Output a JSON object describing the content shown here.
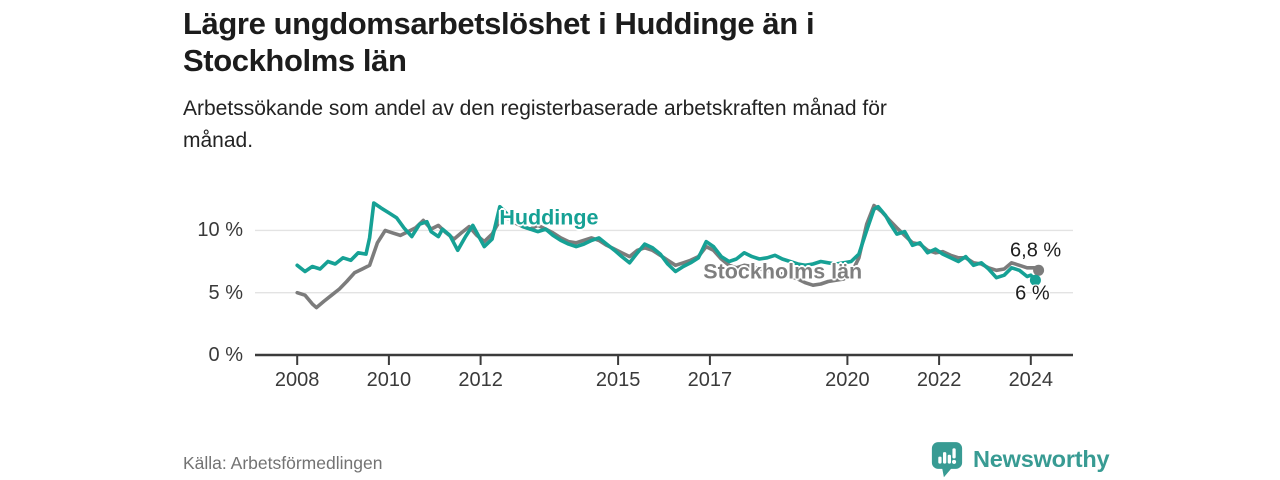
{
  "branding": {
    "logo_text": "Newsworthy"
  },
  "chart_data": {
    "type": "line",
    "title": "Lägre ungdomsarbetslöshet i Huddinge än i Stockholms län",
    "title_lines": [
      "Lägre ungdomsarbetslöshet i Huddinge än i",
      "Stockholms län"
    ],
    "subtitle": "Arbetssökande som andel av den registerbaserade arbetskraften månad för månad.",
    "subtitle_lines": [
      "Arbetssökande som andel av den registerbaserade arbetskraften månad för",
      "månad."
    ],
    "source": "Källa: Arbetsförmedlingen",
    "unit": "%",
    "xlabel": "",
    "ylabel": "",
    "grid": "horizontal",
    "legend_position": "inline-labels",
    "xlim": [
      2007.08,
      2024.92
    ],
    "ylim": [
      0,
      13
    ],
    "colors": {
      "grid": "#E3E3E3",
      "axis": "#3B3B3B"
    },
    "y_ticks": [
      {
        "v": 10,
        "label": "10 %"
      },
      {
        "v": 5,
        "label": "5 %"
      },
      {
        "v": 0,
        "label": "0 %"
      }
    ],
    "x_ticks": [
      {
        "v": 2008,
        "label": "2008"
      },
      {
        "v": 2010,
        "label": "2010"
      },
      {
        "v": 2012,
        "label": "2012"
      },
      {
        "v": 2015,
        "label": "2015"
      },
      {
        "v": 2017,
        "label": "2017"
      },
      {
        "v": 2020,
        "label": "2020"
      },
      {
        "v": 2022,
        "label": "2022"
      },
      {
        "v": 2024,
        "label": "2024"
      }
    ],
    "series": [
      {
        "id": "stockholms-lan",
        "name": "Stockholms län",
        "color": "#7C7C7C",
        "label_color": "#7F7F7F",
        "label_anchor": {
          "x": 2018.59,
          "y": 6.65
        },
        "end_label": "6,8 %",
        "end_label_position": "above",
        "end_value": 6.8,
        "points": [
          [
            2008.0,
            5.0
          ],
          [
            2008.17,
            4.8
          ],
          [
            2008.33,
            4.1
          ],
          [
            2008.42,
            3.8
          ],
          [
            2008.58,
            4.3
          ],
          [
            2008.75,
            4.8
          ],
          [
            2008.92,
            5.3
          ],
          [
            2009.08,
            5.9
          ],
          [
            2009.25,
            6.6
          ],
          [
            2009.42,
            6.9
          ],
          [
            2009.58,
            7.2
          ],
          [
            2009.75,
            9.0
          ],
          [
            2009.92,
            10.0
          ],
          [
            2010.08,
            9.8
          ],
          [
            2010.25,
            9.6
          ],
          [
            2010.42,
            9.9
          ],
          [
            2010.58,
            10.2
          ],
          [
            2010.75,
            10.8
          ],
          [
            2010.92,
            10.1
          ],
          [
            2011.08,
            10.4
          ],
          [
            2011.25,
            9.8
          ],
          [
            2011.42,
            9.3
          ],
          [
            2011.58,
            9.8
          ],
          [
            2011.75,
            10.3
          ],
          [
            2011.92,
            9.6
          ],
          [
            2012.08,
            9.1
          ],
          [
            2012.25,
            9.7
          ],
          [
            2012.42,
            10.8
          ],
          [
            2012.58,
            11.0
          ],
          [
            2012.75,
            10.6
          ],
          [
            2012.92,
            10.3
          ],
          [
            2013.08,
            10.1
          ],
          [
            2013.25,
            10.4
          ],
          [
            2013.42,
            10.1
          ],
          [
            2013.58,
            9.8
          ],
          [
            2013.75,
            9.4
          ],
          [
            2013.92,
            9.1
          ],
          [
            2014.08,
            9.0
          ],
          [
            2014.25,
            9.2
          ],
          [
            2014.42,
            9.4
          ],
          [
            2014.58,
            9.2
          ],
          [
            2014.75,
            8.8
          ],
          [
            2014.92,
            8.5
          ],
          [
            2015.08,
            8.2
          ],
          [
            2015.25,
            7.9
          ],
          [
            2015.42,
            8.4
          ],
          [
            2015.58,
            8.6
          ],
          [
            2015.75,
            8.4
          ],
          [
            2015.92,
            8.0
          ],
          [
            2016.08,
            7.6
          ],
          [
            2016.25,
            7.2
          ],
          [
            2016.42,
            7.4
          ],
          [
            2016.58,
            7.6
          ],
          [
            2016.75,
            7.9
          ],
          [
            2016.92,
            8.7
          ],
          [
            2017.08,
            8.4
          ],
          [
            2017.25,
            7.7
          ],
          [
            2017.42,
            7.2
          ],
          [
            2017.58,
            7.0
          ],
          [
            2017.75,
            7.2
          ],
          [
            2017.92,
            7.1
          ],
          [
            2018.08,
            6.9
          ],
          [
            2018.25,
            6.8
          ],
          [
            2018.42,
            6.6
          ],
          [
            2018.58,
            6.5
          ],
          [
            2018.75,
            6.3
          ],
          [
            2018.92,
            6.1
          ],
          [
            2019.08,
            5.8
          ],
          [
            2019.25,
            5.6
          ],
          [
            2019.42,
            5.7
          ],
          [
            2019.58,
            5.9
          ],
          [
            2019.75,
            6.0
          ],
          [
            2019.92,
            6.1
          ],
          [
            2020.08,
            6.5
          ],
          [
            2020.25,
            7.8
          ],
          [
            2020.42,
            10.5
          ],
          [
            2020.58,
            12.0
          ],
          [
            2020.75,
            11.5
          ],
          [
            2020.92,
            10.8
          ],
          [
            2021.08,
            10.2
          ],
          [
            2021.25,
            9.6
          ],
          [
            2021.42,
            9.0
          ],
          [
            2021.58,
            8.9
          ],
          [
            2021.75,
            8.4
          ],
          [
            2021.92,
            8.2
          ],
          [
            2022.08,
            8.3
          ],
          [
            2022.25,
            8.0
          ],
          [
            2022.42,
            7.8
          ],
          [
            2022.58,
            7.8
          ],
          [
            2022.75,
            7.4
          ],
          [
            2022.92,
            7.3
          ],
          [
            2023.08,
            7.0
          ],
          [
            2023.25,
            6.8
          ],
          [
            2023.42,
            6.9
          ],
          [
            2023.58,
            7.4
          ],
          [
            2023.75,
            7.2
          ],
          [
            2023.92,
            7.0
          ],
          [
            2024.08,
            7.0
          ],
          [
            2024.17,
            6.8
          ]
        ]
      },
      {
        "id": "huddinge",
        "name": "Huddinge",
        "color": "#16A195",
        "label_color": "#16A195",
        "label_anchor": {
          "x": 2013.49,
          "y": 11.0
        },
        "end_label": "6 %",
        "end_label_position": "below",
        "end_value": 6.0,
        "points": [
          [
            2008.0,
            7.2
          ],
          [
            2008.17,
            6.7
          ],
          [
            2008.33,
            7.1
          ],
          [
            2008.5,
            6.9
          ],
          [
            2008.67,
            7.5
          ],
          [
            2008.83,
            7.3
          ],
          [
            2009.0,
            7.8
          ],
          [
            2009.17,
            7.6
          ],
          [
            2009.33,
            8.2
          ],
          [
            2009.5,
            8.1
          ],
          [
            2009.58,
            9.4
          ],
          [
            2009.67,
            12.2
          ],
          [
            2009.83,
            11.8
          ],
          [
            2010.0,
            11.4
          ],
          [
            2010.17,
            11.0
          ],
          [
            2010.33,
            10.2
          ],
          [
            2010.5,
            9.5
          ],
          [
            2010.67,
            10.5
          ],
          [
            2010.83,
            10.7
          ],
          [
            2010.92,
            9.9
          ],
          [
            2011.08,
            9.5
          ],
          [
            2011.17,
            10.1
          ],
          [
            2011.33,
            9.6
          ],
          [
            2011.5,
            8.4
          ],
          [
            2011.67,
            9.5
          ],
          [
            2011.83,
            10.4
          ],
          [
            2011.92,
            9.8
          ],
          [
            2012.08,
            8.7
          ],
          [
            2012.25,
            9.3
          ],
          [
            2012.42,
            11.9
          ],
          [
            2012.58,
            11.3
          ],
          [
            2012.75,
            10.8
          ],
          [
            2012.92,
            10.3
          ],
          [
            2013.08,
            10.1
          ],
          [
            2013.25,
            9.9
          ],
          [
            2013.42,
            10.1
          ],
          [
            2013.58,
            9.6
          ],
          [
            2013.75,
            9.2
          ],
          [
            2013.92,
            8.9
          ],
          [
            2014.08,
            8.7
          ],
          [
            2014.25,
            8.9
          ],
          [
            2014.42,
            9.2
          ],
          [
            2014.58,
            9.4
          ],
          [
            2014.75,
            8.9
          ],
          [
            2014.92,
            8.4
          ],
          [
            2015.08,
            7.9
          ],
          [
            2015.25,
            7.4
          ],
          [
            2015.42,
            8.2
          ],
          [
            2015.58,
            8.9
          ],
          [
            2015.75,
            8.6
          ],
          [
            2015.92,
            8.1
          ],
          [
            2016.08,
            7.3
          ],
          [
            2016.25,
            6.7
          ],
          [
            2016.42,
            7.1
          ],
          [
            2016.58,
            7.4
          ],
          [
            2016.75,
            7.8
          ],
          [
            2016.92,
            9.1
          ],
          [
            2017.08,
            8.7
          ],
          [
            2017.25,
            7.9
          ],
          [
            2017.42,
            7.5
          ],
          [
            2017.58,
            7.7
          ],
          [
            2017.75,
            8.2
          ],
          [
            2017.92,
            7.9
          ],
          [
            2018.08,
            7.7
          ],
          [
            2018.25,
            7.8
          ],
          [
            2018.42,
            8.0
          ],
          [
            2018.58,
            7.7
          ],
          [
            2018.75,
            7.5
          ],
          [
            2018.92,
            7.3
          ],
          [
            2019.08,
            7.2
          ],
          [
            2019.25,
            7.3
          ],
          [
            2019.42,
            7.5
          ],
          [
            2019.58,
            7.4
          ],
          [
            2019.75,
            7.3
          ],
          [
            2019.92,
            7.4
          ],
          [
            2020.08,
            7.5
          ],
          [
            2020.25,
            8.1
          ],
          [
            2020.42,
            10.0
          ],
          [
            2020.58,
            11.7
          ],
          [
            2020.67,
            11.9
          ],
          [
            2020.83,
            11.2
          ],
          [
            2020.92,
            10.6
          ],
          [
            2021.08,
            9.7
          ],
          [
            2021.25,
            9.9
          ],
          [
            2021.42,
            8.8
          ],
          [
            2021.58,
            9.0
          ],
          [
            2021.75,
            8.2
          ],
          [
            2021.92,
            8.5
          ],
          [
            2022.08,
            8.1
          ],
          [
            2022.25,
            7.8
          ],
          [
            2022.42,
            7.5
          ],
          [
            2022.58,
            7.9
          ],
          [
            2022.75,
            7.2
          ],
          [
            2022.92,
            7.4
          ],
          [
            2023.08,
            6.9
          ],
          [
            2023.25,
            6.2
          ],
          [
            2023.42,
            6.4
          ],
          [
            2023.58,
            7.0
          ],
          [
            2023.75,
            6.8
          ],
          [
            2023.92,
            6.3
          ],
          [
            2024.0,
            6.4
          ],
          [
            2024.1,
            6.0
          ]
        ]
      }
    ]
  }
}
